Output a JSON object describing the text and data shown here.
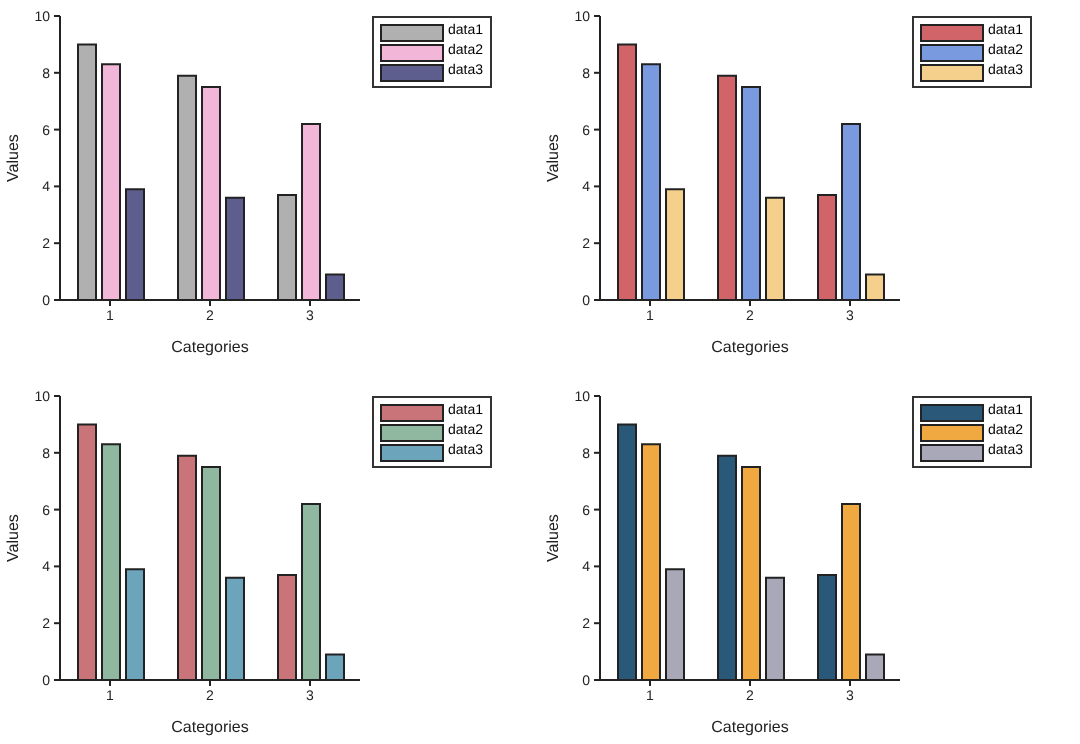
{
  "chart_data": [
    {
      "type": "bar",
      "xlabel": "Categories",
      "ylabel": "Values",
      "categories": [
        "1",
        "2",
        "3"
      ],
      "ylim": [
        0,
        10
      ],
      "yticks": [
        0,
        2,
        4,
        6,
        8,
        10
      ],
      "legend": "top right",
      "series": [
        {
          "name": "data1",
          "color": "#b0b0b0",
          "values": [
            9,
            7.9,
            3.7
          ]
        },
        {
          "name": "data2",
          "color": "#f2b6d8",
          "values": [
            8.3,
            7.5,
            6.2
          ]
        },
        {
          "name": "data3",
          "color": "#5e5e8e",
          "values": [
            3.9,
            3.6,
            0.9
          ]
        }
      ]
    },
    {
      "type": "bar",
      "xlabel": "Categories",
      "ylabel": "Values",
      "categories": [
        "1",
        "2",
        "3"
      ],
      "ylim": [
        0,
        10
      ],
      "yticks": [
        0,
        2,
        4,
        6,
        8,
        10
      ],
      "legend": "top right",
      "series": [
        {
          "name": "data1",
          "color": "#d06468",
          "values": [
            9,
            7.9,
            3.7
          ]
        },
        {
          "name": "data2",
          "color": "#7a9ae0",
          "values": [
            8.3,
            7.5,
            6.2
          ]
        },
        {
          "name": "data3",
          "color": "#f4d08c",
          "values": [
            3.9,
            3.6,
            0.9
          ]
        }
      ]
    },
    {
      "type": "bar",
      "xlabel": "Categories",
      "ylabel": "Values",
      "categories": [
        "1",
        "2",
        "3"
      ],
      "ylim": [
        0,
        10
      ],
      "yticks": [
        0,
        2,
        4,
        6,
        8,
        10
      ],
      "legend": "top right",
      "series": [
        {
          "name": "data1",
          "color": "#c87478",
          "values": [
            9,
            7.9,
            3.7
          ]
        },
        {
          "name": "data2",
          "color": "#90b8a0",
          "values": [
            8.3,
            7.5,
            6.2
          ]
        },
        {
          "name": "data3",
          "color": "#6ca4bc",
          "values": [
            3.9,
            3.6,
            0.9
          ]
        }
      ]
    },
    {
      "type": "bar",
      "xlabel": "Categories",
      "ylabel": "Values",
      "categories": [
        "1",
        "2",
        "3"
      ],
      "ylim": [
        0,
        10
      ],
      "yticks": [
        0,
        2,
        4,
        6,
        8,
        10
      ],
      "legend": "top right",
      "series": [
        {
          "name": "data1",
          "color": "#2a5878",
          "values": [
            9,
            7.9,
            3.7
          ]
        },
        {
          "name": "data2",
          "color": "#f0a840",
          "values": [
            8.3,
            7.5,
            6.2
          ]
        },
        {
          "name": "data3",
          "color": "#a8a8b8",
          "values": [
            3.9,
            3.6,
            0.9
          ]
        }
      ]
    }
  ]
}
